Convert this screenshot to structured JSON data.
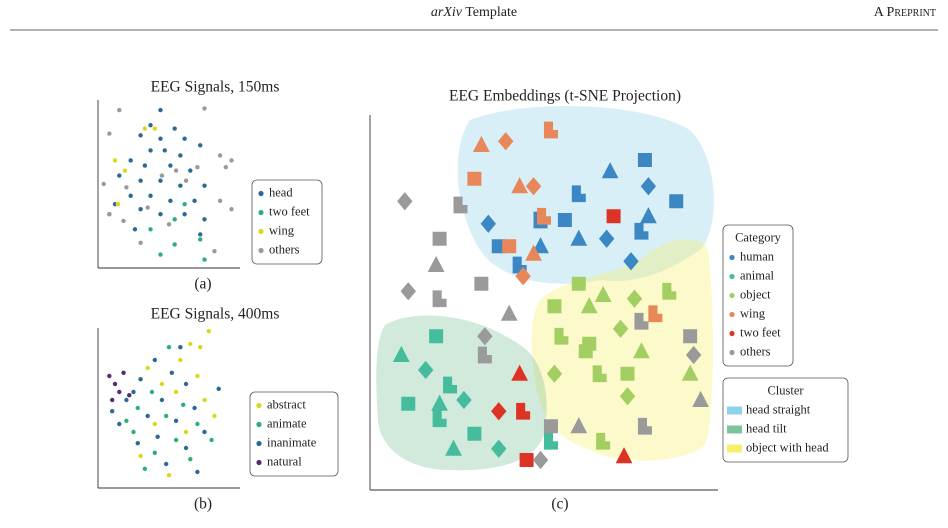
{
  "header": {
    "title_italic": "arXiv",
    "title_rest": "Template",
    "label": "A Preprint"
  },
  "chart_data": [
    {
      "type": "scatter",
      "title": "EEG Signals, 150ms",
      "caption": "(a)",
      "xlim": [
        0,
        100
      ],
      "ylim": [
        0,
        100
      ],
      "legend": "right",
      "series": [
        {
          "name": "head",
          "color": "#2b6a94",
          "x": [
            44,
            37,
            54,
            30,
            44,
            61,
            37,
            47,
            58,
            72,
            23,
            33,
            51,
            65,
            15,
            30,
            44,
            58,
            75,
            23,
            37,
            51,
            68,
            12,
            30,
            44,
            61,
            75,
            26,
            72
          ],
          "y": [
            94,
            85,
            83,
            79,
            77,
            77,
            70,
            70,
            67,
            73,
            64,
            61,
            61,
            58,
            55,
            52,
            52,
            49,
            49,
            43,
            43,
            40,
            40,
            38,
            35,
            32,
            32,
            29,
            23,
            20
          ]
        },
        {
          "name": "two feet",
          "color": "#2fae7a",
          "x": [
            61,
            54,
            37,
            72,
            54,
            8,
            75,
            44
          ],
          "y": [
            38,
            29,
            23,
            17,
            14,
            32,
            5,
            8
          ]
        },
        {
          "name": "wing",
          "color": "#d8d81e",
          "x": [
            33,
            40,
            12,
            19,
            14
          ],
          "y": [
            83,
            83,
            64,
            58,
            38
          ]
        },
        {
          "name": "others",
          "color": "#9a9a9a",
          "x": [
            15,
            75,
            8,
            86,
            94,
            90,
            4,
            20,
            45,
            55,
            62,
            70,
            8,
            18,
            35,
            50,
            86,
            94,
            30,
            82
          ],
          "y": [
            94,
            95,
            80,
            67,
            64,
            60,
            50,
            48,
            55,
            58,
            52,
            60,
            32,
            28,
            36,
            26,
            40,
            35,
            15,
            10
          ]
        }
      ]
    },
    {
      "type": "scatter",
      "title": "EEG Signals, 400ms",
      "caption": "(b)",
      "xlim": [
        0,
        100
      ],
      "ylim": [
        0,
        100
      ],
      "legend": "right",
      "series": [
        {
          "name": "abstract",
          "color": "#d8d81e",
          "x": [
            65,
            78,
            58,
            35,
            70,
            45,
            55,
            75,
            40,
            62,
            30,
            50,
            72,
            82
          ],
          "y": [
            90,
            98,
            80,
            75,
            70,
            65,
            60,
            55,
            40,
            35,
            20,
            8,
            88,
            45
          ]
        },
        {
          "name": "animate",
          "color": "#2fae7a",
          "x": [
            50,
            38,
            28,
            60,
            48,
            70,
            25,
            55,
            40,
            65,
            33,
            80,
            20
          ],
          "y": [
            88,
            60,
            50,
            52,
            45,
            40,
            35,
            30,
            22,
            18,
            12,
            30,
            42
          ]
        },
        {
          "name": "inanimate",
          "color": "#2b6a94",
          "x": [
            40,
            52,
            30,
            62,
            20,
            45,
            68,
            35,
            55,
            15,
            75,
            42,
            62,
            28,
            48,
            70,
            25,
            10,
            85,
            58
          ],
          "y": [
            80,
            72,
            68,
            65,
            55,
            55,
            50,
            45,
            42,
            40,
            35,
            32,
            25,
            28,
            15,
            10,
            60,
            48,
            62,
            88
          ]
        },
        {
          "name": "natural",
          "color": "#5a2a6e",
          "x": [
            8,
            12,
            15,
            18,
            22,
            10
          ],
          "y": [
            70,
            65,
            60,
            72,
            58,
            55
          ]
        }
      ]
    },
    {
      "type": "scatter",
      "title": "EEG Embeddings (t-SNE Projection)",
      "caption": "(c)",
      "xlim": [
        0,
        100
      ],
      "ylim": [
        0,
        100
      ],
      "legend": "right",
      "legend_title": "Category",
      "series": [
        {
          "name": "human",
          "color": "#3a87c4",
          "x": [
            79,
            69,
            80,
            60,
            88,
            80,
            34,
            49,
            56,
            60,
            68,
            78,
            37,
            49,
            75,
            43
          ],
          "y": [
            88,
            85,
            81,
            79,
            77,
            73,
            71,
            72,
            72,
            67,
            67,
            69,
            65,
            65,
            61,
            60
          ]
        },
        {
          "name": "animal",
          "color": "#45bc9c",
          "x": [
            19,
            9,
            16,
            23,
            11,
            20,
            27,
            20,
            30,
            24,
            37,
            52
          ],
          "y": [
            41,
            36,
            32,
            28,
            23,
            23,
            24,
            19,
            15,
            11,
            11,
            13
          ]
        },
        {
          "name": "object",
          "color": "#a3cf62",
          "x": [
            60,
            67,
            76,
            86,
            53,
            63,
            72,
            55,
            62,
            78,
            53,
            66,
            74,
            92,
            74,
            67,
            63
          ],
          "y": [
            55,
            52,
            51,
            53,
            49,
            49,
            43,
            41,
            37,
            37,
            31,
            31,
            31,
            31,
            25,
            13,
            39
          ]
        },
        {
          "name": "wing",
          "color": "#e8875a",
          "x": [
            32,
            39,
            52,
            30,
            43,
            47,
            50,
            40,
            47,
            44,
            82
          ],
          "y": [
            92,
            93,
            96,
            83,
            81,
            81,
            73,
            65,
            63,
            57,
            47
          ]
        },
        {
          "name": "two feet",
          "color": "#dd3325",
          "x": [
            70,
            43,
            37,
            44,
            45,
            73
          ],
          "y": [
            73,
            31,
            21,
            21,
            8,
            9
          ]
        },
        {
          "name": "others",
          "color": "#9a9a9a",
          "x": [
            10,
            26,
            20,
            19,
            11,
            20,
            32,
            40,
            33,
            33,
            52,
            60,
            49,
            78,
            92,
            95,
            93,
            79
          ],
          "y": [
            77,
            76,
            67,
            60,
            53,
            51,
            55,
            47,
            41,
            36,
            17,
            17,
            8,
            45,
            41,
            24,
            36,
            17
          ]
        }
      ],
      "clusters_title": "Cluster",
      "clusters": [
        {
          "name": "head straight",
          "color": "#8fd0ec"
        },
        {
          "name": "head tilt",
          "color": "#7cc39a"
        },
        {
          "name": "object with head",
          "color": "#f7ef6a"
        }
      ]
    }
  ]
}
